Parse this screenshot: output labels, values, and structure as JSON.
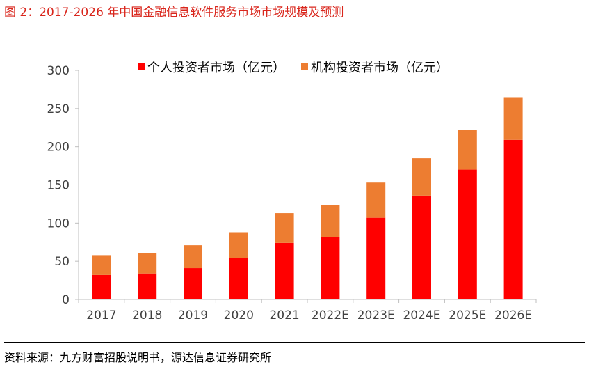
{
  "figure_title": "图 2：2017-2026 年中国金融信息软件服务市场市场规模及预测",
  "source": "资料来源：九方财富招股说明书，源达信息证券研究所",
  "colors": {
    "series_0": "#ff0000",
    "series_1": "#ed7d31",
    "title": "#d9261c"
  },
  "chart_data": {
    "type": "bar",
    "stacked": true,
    "categories": [
      "2017",
      "2018",
      "2019",
      "2020",
      "2021",
      "2022E",
      "2023E",
      "2024E",
      "2025E",
      "2026E"
    ],
    "series": [
      {
        "name": "个人投资者市场（亿元）",
        "values": [
          32,
          34,
          41,
          54,
          74,
          82,
          107,
          136,
          170,
          209
        ]
      },
      {
        "name": "机构投资者市场（亿元）",
        "values": [
          26,
          27,
          30,
          34,
          39,
          42,
          46,
          49,
          52,
          55
        ]
      }
    ],
    "ylim": [
      0,
      300
    ],
    "yticks": [
      0,
      50,
      100,
      150,
      200,
      250,
      300
    ],
    "legend_position": "top"
  }
}
